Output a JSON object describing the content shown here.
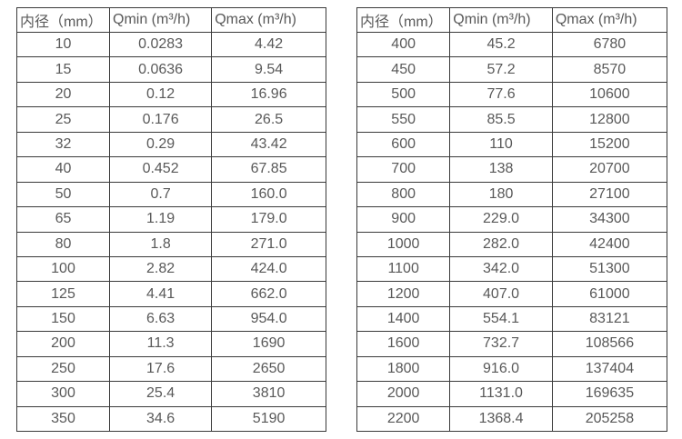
{
  "page": {
    "background_color": "#ffffff",
    "border_color": "#3a3a3a",
    "text_color": "#595959"
  },
  "tables": [
    {
      "id": "small-diameters",
      "headers": [
        "内径（mm）",
        "Qmin (m³/h)",
        "Qmax (m³/h)"
      ],
      "rows": [
        [
          "10",
          "0.0283",
          "4.42"
        ],
        [
          "15",
          "0.0636",
          "9.54"
        ],
        [
          "20",
          "0.12",
          "16.96"
        ],
        [
          "25",
          "0.176",
          "26.5"
        ],
        [
          "32",
          "0.29",
          "43.42"
        ],
        [
          "40",
          "0.452",
          "67.85"
        ],
        [
          "50",
          "0.7",
          "160.0"
        ],
        [
          "65",
          "1.19",
          "179.0"
        ],
        [
          "80",
          "1.8",
          "271.0"
        ],
        [
          "100",
          "2.82",
          "424.0"
        ],
        [
          "125",
          "4.41",
          "662.0"
        ],
        [
          "150",
          "6.63",
          "954.0"
        ],
        [
          "200",
          "11.3",
          "1690"
        ],
        [
          "250",
          "17.6",
          "2650"
        ],
        [
          "300",
          "25.4",
          "3810"
        ],
        [
          "350",
          "34.6",
          "5190"
        ]
      ]
    },
    {
      "id": "large-diameters",
      "headers": [
        "内径（mm）",
        "Qmin (m³/h)",
        "Qmax (m³/h)"
      ],
      "rows": [
        [
          "400",
          "45.2",
          "6780"
        ],
        [
          "450",
          "57.2",
          "8570"
        ],
        [
          "500",
          "77.6",
          "10600"
        ],
        [
          "550",
          "85.5",
          "12800"
        ],
        [
          "600",
          "110",
          "15200"
        ],
        [
          "700",
          "138",
          "20700"
        ],
        [
          "800",
          "180",
          "27100"
        ],
        [
          "900",
          "229.0",
          "34300"
        ],
        [
          "1000",
          "282.0",
          "42400"
        ],
        [
          "1100",
          "342.0",
          "51300"
        ],
        [
          "1200",
          "407.0",
          "61000"
        ],
        [
          "1400",
          "554.1",
          "83121"
        ],
        [
          "1600",
          "732.7",
          "108566"
        ],
        [
          "1800",
          "916.0",
          "137404"
        ],
        [
          "2000",
          "1131.0",
          "169635"
        ],
        [
          "2200",
          "1368.4",
          "205258"
        ]
      ]
    }
  ]
}
